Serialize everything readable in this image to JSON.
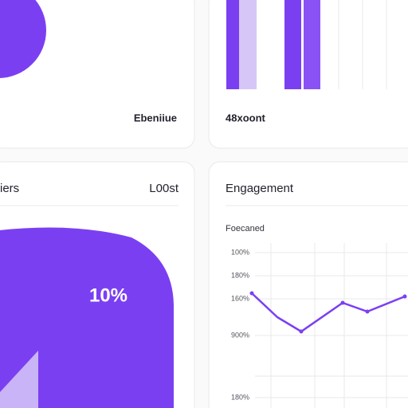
{
  "cards": [
    {
      "label": "Ebeniiue"
    },
    {
      "label": "48xoont"
    },
    {
      "title": "iers",
      "value": "L00st",
      "figure": "10%"
    },
    {
      "title": "Engagement",
      "subtitle": "Foecaned",
      "axis_labels": [
        "100%",
        "180%",
        "160%",
        "900%",
        "180%"
      ]
    }
  ]
}
